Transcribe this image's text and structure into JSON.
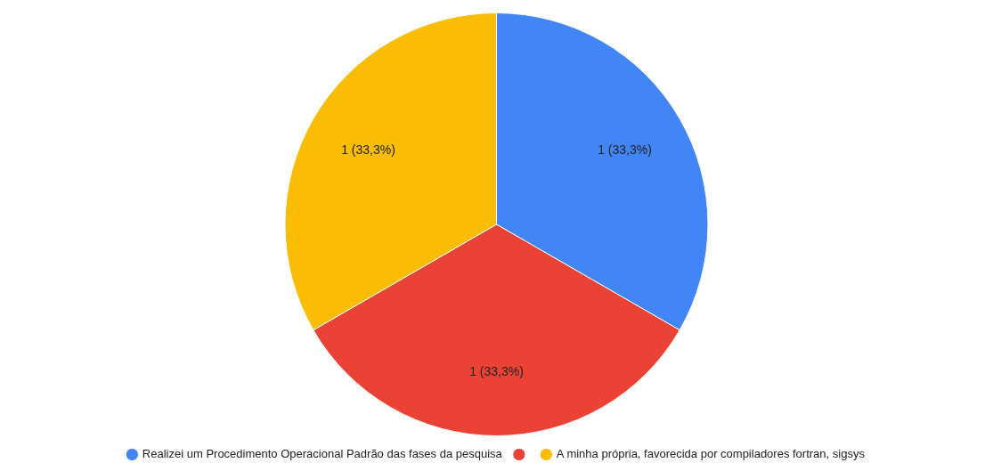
{
  "chart_data": {
    "type": "pie",
    "categories": [
      "Realizei um Procedimento Operacional Padrão das fases da pesquisa",
      null,
      "A minha própria, favorecida por compiladores fortran, sigsys"
    ],
    "values": [
      1,
      1,
      1
    ],
    "colors": [
      "#4285f4",
      "#ea4335",
      "#fbbc04"
    ],
    "value_labels": [
      "1 (33,3%)",
      "1 (33,3%)",
      "1 (33,3%)"
    ],
    "legend": "bottom"
  }
}
